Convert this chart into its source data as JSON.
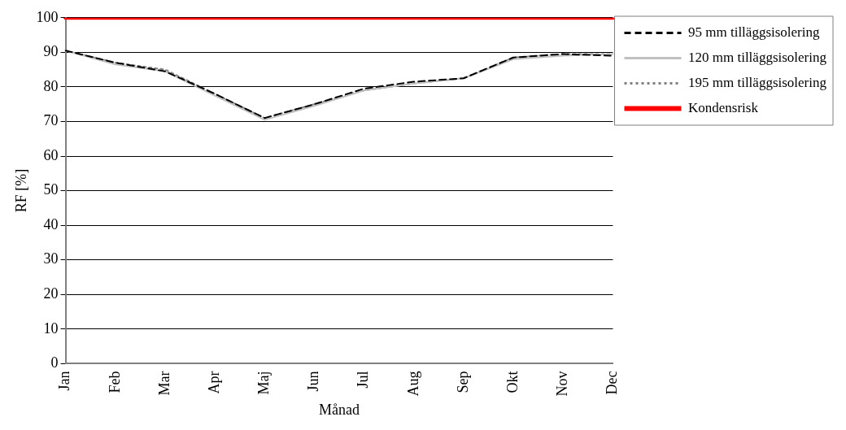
{
  "chart_data": {
    "type": "line",
    "xlabel": "Månad",
    "ylabel": "RF [%]",
    "categories": [
      "Jan",
      "Feb",
      "Mar",
      "Apr",
      "Maj",
      "Jun",
      "Jul",
      "Aug",
      "Sep",
      "Okt",
      "Nov",
      "Dec"
    ],
    "series": [
      {
        "name": "95 mm tilläggsisolering",
        "color": "#000000",
        "line_style": "dashed",
        "values": [
          90.5,
          87,
          84.5,
          78,
          71,
          75,
          79.5,
          81.5,
          82.5,
          88.5,
          89.5,
          89
        ]
      },
      {
        "name": "120 mm tilläggsisolering",
        "color": "#c0c0c0",
        "line_style": "solid",
        "values": [
          90.5,
          86.5,
          84.5,
          77.5,
          70.5,
          74.5,
          79,
          81,
          82.5,
          88,
          89,
          89.5
        ]
      },
      {
        "name": "195 mm tilläggsisolering",
        "color": "#808080",
        "line_style": "dotted",
        "values": [
          90.5,
          87,
          85,
          78,
          71,
          75,
          79,
          81,
          82.5,
          88.5,
          89.5,
          89.5
        ]
      },
      {
        "name": "Kondensrisk",
        "color": "#ff0000",
        "line_style": "solid",
        "values": [
          100,
          100,
          100,
          100,
          100,
          100,
          100,
          100,
          100,
          100,
          100,
          100
        ]
      }
    ],
    "ylim": [
      0,
      100
    ],
    "yticks": [
      0,
      10,
      20,
      30,
      40,
      50,
      60,
      70,
      80,
      90,
      100
    ],
    "grid": "y",
    "legend": "right",
    "marker": "none"
  }
}
